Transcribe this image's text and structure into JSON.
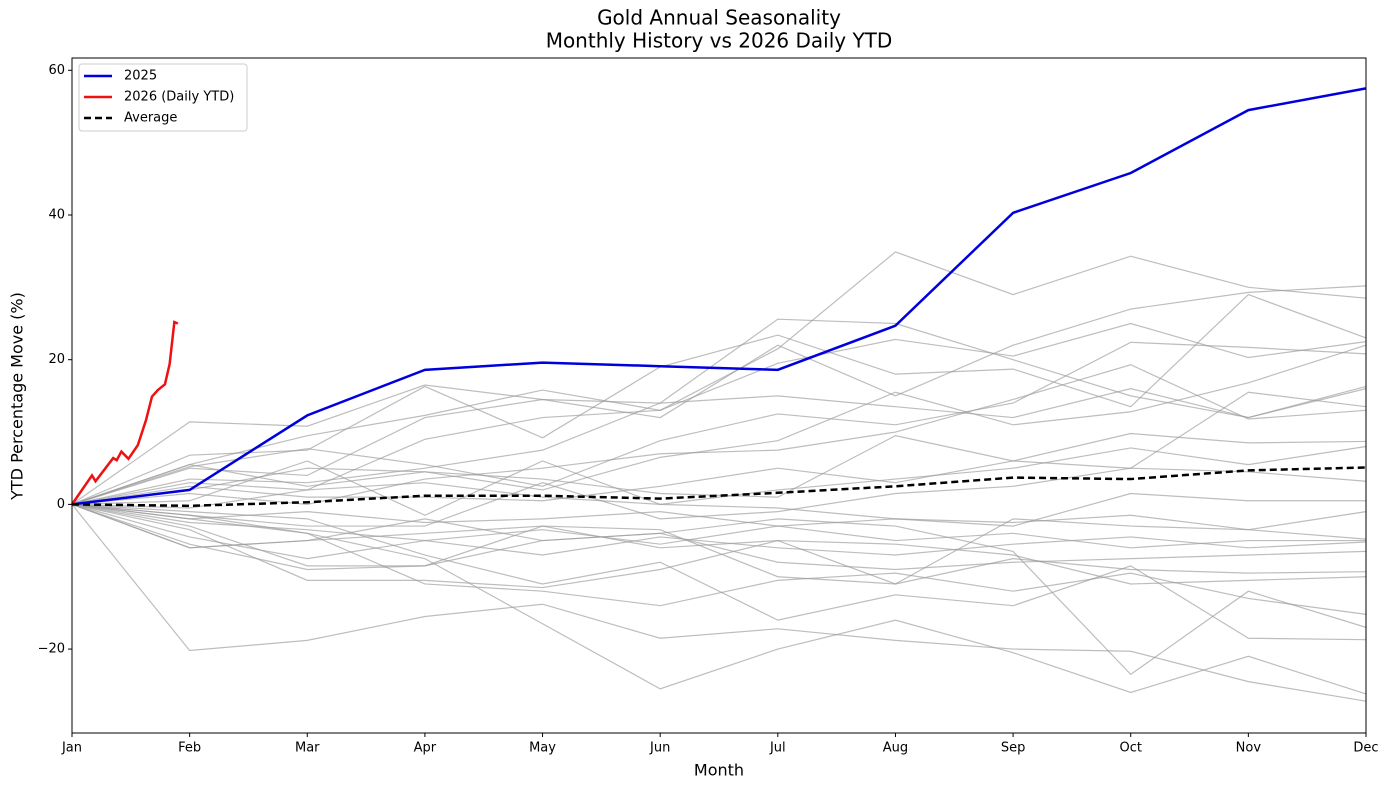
{
  "chart_data": {
    "type": "line",
    "title": [
      "Gold Annual Seasonality",
      "Monthly History vs 2026 Daily YTD"
    ],
    "x_label": "Month",
    "y_label": "YTD Percentage Move (%)",
    "x": [
      0,
      1,
      2,
      3,
      4,
      5,
      6,
      7,
      8,
      9,
      10,
      11
    ],
    "xlim": [
      0,
      11
    ],
    "xticks": [
      {
        "value": 0,
        "label": "Jan"
      },
      {
        "value": 1,
        "label": "Feb"
      },
      {
        "value": 2,
        "label": "Mar"
      },
      {
        "value": 3,
        "label": "Apr"
      },
      {
        "value": 4,
        "label": "May"
      },
      {
        "value": 5,
        "label": "Jun"
      },
      {
        "value": 6,
        "label": "Jul"
      },
      {
        "value": 7,
        "label": "Aug"
      },
      {
        "value": 8,
        "label": "Sep"
      },
      {
        "value": 9,
        "label": "Oct"
      },
      {
        "value": 10,
        "label": "Nov"
      },
      {
        "value": 11,
        "label": "Dec"
      }
    ],
    "ylim": [
      -31.6,
      61.7
    ],
    "yticks": [
      {
        "value": -20,
        "label": "−20"
      },
      0,
      20,
      40,
      60
    ],
    "grid": false,
    "legend": "upper left",
    "history_color": "#999999",
    "history": [
      {
        "values": [
          0,
          11.4,
          10.8,
          16.5,
          14.5,
          14,
          25.6,
          25,
          20,
          15,
          12,
          16
        ]
      },
      {
        "values": [
          0,
          5.5,
          9.5,
          12.3,
          15.8,
          13,
          21.5,
          34.9,
          29,
          34.3,
          30,
          28.5
        ]
      },
      {
        "values": [
          0,
          6.8,
          7.5,
          16.3,
          9.2,
          19,
          23.4,
          18,
          18.7,
          13.5,
          29,
          23
        ]
      },
      {
        "values": [
          0,
          5,
          4,
          12,
          14.5,
          12,
          22,
          15,
          22,
          27,
          29.3,
          30.2
        ]
      },
      {
        "values": [
          0,
          3,
          2,
          9,
          12,
          13,
          19.5,
          22.8,
          20.5,
          25,
          20.3,
          22.5
        ]
      },
      {
        "values": [
          0,
          5.2,
          7.7,
          5.5,
          2.5,
          8.8,
          12.5,
          11,
          14,
          22.4,
          21.7,
          20.8
        ]
      },
      {
        "values": [
          0,
          3.5,
          3,
          5,
          7.5,
          14,
          15,
          13.5,
          12,
          16,
          12,
          16.3
        ]
      },
      {
        "values": [
          0,
          2,
          5,
          4.5,
          2,
          6.5,
          8.8,
          15.5,
          11,
          12.8,
          16.8,
          22
        ]
      },
      {
        "values": [
          0,
          1.5,
          0,
          3.5,
          5,
          7,
          7.5,
          10,
          14.5,
          19.3,
          11.8,
          13
        ]
      },
      {
        "values": [
          0,
          5.5,
          2.5,
          4.5,
          3.5,
          1.5,
          1,
          9.5,
          6,
          5,
          15.5,
          13.5
        ]
      },
      {
        "values": [
          0,
          2.5,
          1,
          1,
          0.5,
          2.5,
          5,
          3,
          6,
          9.8,
          8.5,
          8.7
        ]
      },
      {
        "values": [
          0,
          0.5,
          6,
          -1.5,
          6,
          0,
          2,
          3.5,
          5,
          7.8,
          5.5,
          8
        ]
      },
      {
        "values": [
          0,
          -1.5,
          -3,
          -3,
          3,
          -2,
          -1,
          1.5,
          2.5,
          5,
          4.5,
          3.2
        ]
      },
      {
        "values": [
          0,
          -0.5,
          2,
          3,
          1,
          0,
          -0.5,
          -2,
          -3,
          1.5,
          0.5,
          0.5
        ]
      },
      {
        "values": [
          0,
          -2,
          -1,
          -2.5,
          -2,
          -1,
          -3,
          -2,
          -2.5,
          -1.5,
          -3.5,
          -1
        ]
      },
      {
        "values": [
          0,
          -2.5,
          -3.5,
          -5,
          -3.5,
          -5.5,
          -3,
          -5,
          -4,
          -6,
          -5,
          -5
        ]
      },
      {
        "values": [
          0,
          -6,
          -5,
          -4,
          -3,
          -6,
          -5,
          -11,
          -2,
          -3,
          -3.5,
          -4.8
        ]
      },
      {
        "values": [
          0,
          -4.5,
          -7.5,
          -5,
          -7,
          -4.5,
          -6,
          -7,
          -5.5,
          -4.5,
          -6,
          -5.2
        ]
      },
      {
        "values": [
          0,
          -3,
          -8.5,
          -8.5,
          -5,
          -4,
          -8,
          -9,
          -8,
          -7.5,
          -7,
          -6.5
        ]
      },
      {
        "values": [
          0,
          -5.5,
          -9,
          -8.5,
          -3,
          -3.5,
          -10,
          -11,
          -7.5,
          -9,
          -9.5,
          -9.3
        ]
      },
      {
        "values": [
          0,
          -3.5,
          -10.5,
          -10.5,
          -11.5,
          -9,
          -5,
          -5.5,
          -7,
          -11,
          -10.5,
          -10
        ]
      },
      {
        "values": [
          0,
          -2,
          -4,
          -11,
          -12,
          -14,
          -10.5,
          -9.5,
          -12,
          -9.5,
          -13,
          -15.2
        ]
      },
      {
        "values": [
          0,
          -1,
          -2,
          -7,
          -11,
          -8,
          -16,
          -12.5,
          -14,
          -8.5,
          -18.5,
          -18.7
        ]
      },
      {
        "values": [
          0,
          -6,
          -5,
          -2,
          -5,
          -4,
          -2,
          -3,
          -6.5,
          -23.5,
          -12,
          -17
        ]
      },
      {
        "values": [
          0,
          -20.2,
          -18.8,
          -15.5,
          -13.8,
          -18.5,
          -17.2,
          -18.8,
          -20,
          -20.3,
          -24.5,
          -27.2
        ]
      },
      {
        "values": [
          0,
          -1.5,
          -4,
          -7.5,
          -16.5,
          -25.5,
          -20,
          -16,
          -20.5,
          -26,
          -21,
          -26.2
        ]
      }
    ],
    "series": [
      {
        "name": "2025",
        "color": "#0000dd",
        "values": [
          0,
          2,
          12.3,
          18.6,
          19.6,
          19.1,
          18.6,
          24.7,
          40.3,
          45.8,
          54.5,
          57.5
        ]
      },
      {
        "name": "2026 (Daily YTD)",
        "color": "#ee1111",
        "x": [
          0,
          0.17,
          0.2,
          0.35,
          0.38,
          0.42,
          0.48,
          0.56,
          0.63,
          0.68,
          0.73,
          0.79,
          0.83,
          0.87,
          0.9
        ],
        "values": [
          0,
          4,
          3.2,
          6.4,
          6.1,
          7.3,
          6.3,
          8.2,
          11.7,
          14.9,
          15.8,
          16.6,
          19.4,
          25.2,
          25
        ]
      },
      {
        "name": "Average",
        "color": "#000000",
        "dashed": true,
        "values": [
          0,
          -0.2,
          0.3,
          1.2,
          1.2,
          0.8,
          1.6,
          2.5,
          3.7,
          3.5,
          4.7,
          5.1
        ]
      }
    ]
  }
}
